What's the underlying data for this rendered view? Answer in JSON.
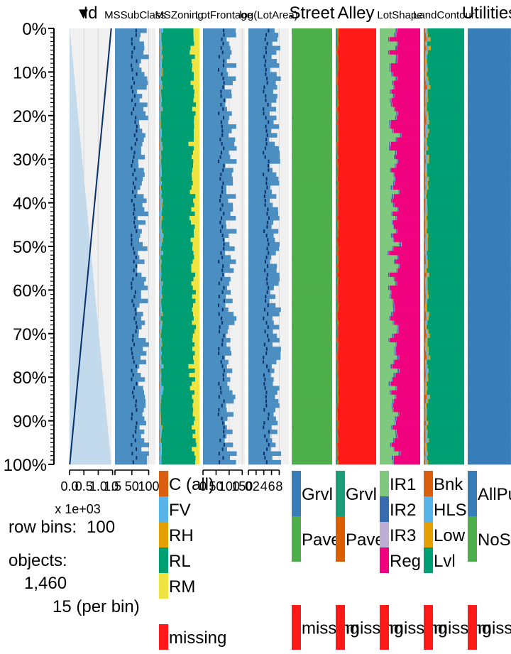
{
  "chart_data": {
    "type": "tableplot",
    "row_bins": 100,
    "objects": 1460,
    "per_bin": 15,
    "y_axis": {
      "ticks": [
        "0%",
        "10%",
        "20%",
        "30%",
        "40%",
        "50%",
        "60%",
        "70%",
        "80%",
        "90%",
        "100%"
      ],
      "sorted_by": "Id",
      "sort_direction": "descending"
    },
    "info_text": {
      "row_bins_label": "row bins:",
      "row_bins_value": "100",
      "objects_label": "objects:",
      "objects_value": "1,460",
      "per_bin_value": "15 (per bin)"
    },
    "colors": {
      "panel_bg": "#f0f0f0",
      "numeric_bar": "#4b8ec2",
      "numeric_bar_light": "#c2daeb",
      "mean_line": "#08306b",
      "missing": "#ff1a1a"
    },
    "columns": [
      {
        "name": "Id",
        "type": "numeric",
        "sort_marker": "▼",
        "axis_ticks": [
          "0.0",
          "0.5",
          "1.0",
          "1.5"
        ],
        "axis_multiplier": "x 1e+03",
        "range": [
          0,
          1.46
        ],
        "mean": [
          0.007,
          1.453
        ]
      },
      {
        "name": "MSSubClass",
        "type": "numeric",
        "axis_ticks": [
          "0",
          "50",
          "100"
        ],
        "range": [
          0,
          120
        ],
        "mean_center": 57
      },
      {
        "name": "MSZoning",
        "type": "categorical",
        "categories": [
          "C (all)",
          "FV",
          "RH",
          "RL",
          "RM"
        ],
        "colors": [
          "#d95f0e",
          "#56b4e9",
          "#e69f00",
          "#009e73",
          "#f0e442"
        ],
        "proportions": [
          0.007,
          0.045,
          0.011,
          0.788,
          0.149
        ],
        "missing_label": "missing"
      },
      {
        "name": "LotFrontage",
        "type": "numeric",
        "axis_ticks": [
          "0",
          "50",
          "100",
          "150"
        ],
        "range": [
          0,
          160
        ],
        "mean_center": 70
      },
      {
        "name": "log(LotArea)",
        "type": "numeric",
        "axis_ticks": [
          "0",
          "2",
          "4",
          "6",
          "8"
        ],
        "range": [
          0,
          10.5
        ],
        "mean_center": 4.6
      },
      {
        "name": "Street",
        "type": "categorical",
        "categories": [
          "Grvl",
          "Pave"
        ],
        "colors": [
          "#377eb8",
          "#4daf4a"
        ],
        "proportions": [
          0.004,
          0.996
        ],
        "missing_label": "missing"
      },
      {
        "name": "Alley",
        "type": "categorical",
        "categories": [
          "Grvl",
          "Pave"
        ],
        "colors": [
          "#1b9e77",
          "#d95f02"
        ],
        "proportions": [
          0.034,
          0.028
        ],
        "missing_label": "missing",
        "missing_proportion": 0.938
      },
      {
        "name": "LotShape",
        "type": "categorical",
        "categories": [
          "IR1",
          "IR2",
          "IR3",
          "Reg"
        ],
        "colors": [
          "#7fc97f",
          "#386cb0",
          "#beaed4",
          "#f0027f"
        ],
        "proportions": [
          0.332,
          0.028,
          0.007,
          0.633
        ],
        "missing_label": "missing"
      },
      {
        "name": "LandContour",
        "type": "categorical",
        "categories": [
          "Bnk",
          "HLS",
          "Low",
          "Lvl"
        ],
        "colors": [
          "#d95f0e",
          "#56b4e9",
          "#e69f00",
          "#009e73"
        ],
        "proportions": [
          0.043,
          0.034,
          0.025,
          0.898
        ],
        "missing_label": "missing"
      },
      {
        "name": "Utilities",
        "type": "categorical",
        "categories": [
          "AllPub",
          "NoSeWa"
        ],
        "colors": [
          "#377eb8",
          "#4daf4a"
        ],
        "proportions": [
          0.999,
          0.001
        ],
        "missing_label": "missing"
      }
    ]
  }
}
